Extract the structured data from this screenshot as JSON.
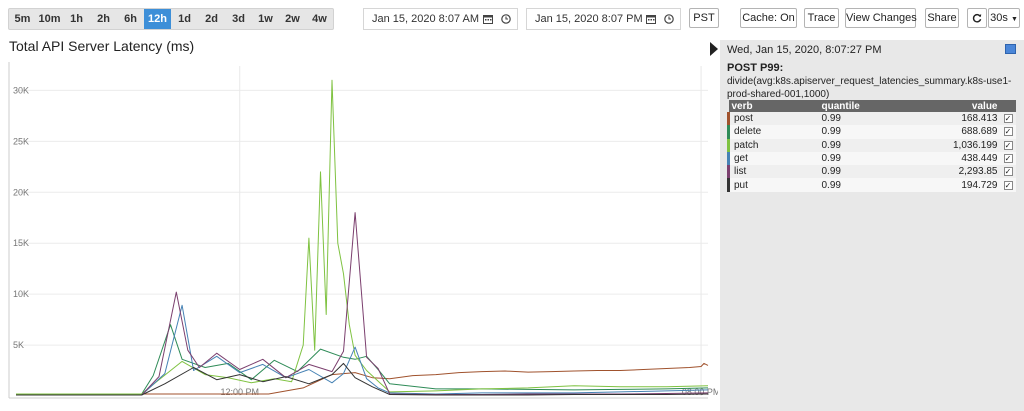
{
  "toolbar": {
    "ranges": [
      "5m",
      "10m",
      "1h",
      "2h",
      "6h",
      "12h",
      "1d",
      "2d",
      "3d",
      "1w",
      "2w",
      "4w"
    ],
    "active_range": "12h",
    "start_date": "Jan 15, 2020 8:07 AM",
    "end_date": "Jan 15, 2020 8:07 PM",
    "timezone": "PST",
    "cache_label": "Cache: On",
    "trace_label": "Trace",
    "view_changes_label": "View Changes",
    "share_label": "Share",
    "refresh_interval": "30s"
  },
  "chart": {
    "title": "Total API Server Latency (ms)"
  },
  "chart_data": {
    "type": "line",
    "title": "Total API Server Latency (ms)",
    "y_ticks": [
      "5K",
      "10K",
      "15K",
      "20K",
      "25K",
      "30K"
    ],
    "y_tick_values": [
      5000,
      10000,
      15000,
      20000,
      25000,
      30000
    ],
    "ylim": [
      0,
      32000
    ],
    "x_ticks": [
      "12:00 PM",
      "08:00 PM"
    ],
    "x_tick_values": [
      12,
      20
    ],
    "xlim": [
      8.12,
      20.12
    ],
    "series": [
      {
        "name": "post",
        "color": "#a0522d",
        "x": [
          8.12,
          12.5,
          13.1,
          13.6,
          14.0,
          14.3,
          14.6,
          15.0,
          15.4,
          15.8,
          16.2,
          16.6,
          17.0,
          17.4,
          17.8,
          18.2,
          18.6,
          19.0,
          19.4,
          19.8,
          20.0,
          20.05,
          20.12
        ],
        "y": [
          200,
          200,
          800,
          2100,
          2300,
          1800,
          1700,
          2000,
          2100,
          2300,
          2400,
          2450,
          2350,
          2400,
          2450,
          2500,
          2500,
          2600,
          2700,
          2800,
          2900,
          3200,
          3000
        ]
      },
      {
        "name": "delete",
        "color": "#2e8b57",
        "x": [
          8.12,
          10.3,
          10.5,
          10.8,
          11.0,
          11.4,
          11.8,
          12.2,
          12.6,
          13.0,
          13.4,
          13.8,
          14.0,
          14.2,
          14.4,
          14.6,
          15.4,
          16.2,
          17.0,
          17.8,
          18.6,
          19.4,
          20.12
        ],
        "y": [
          200,
          200,
          2000,
          7000,
          3600,
          2800,
          3200,
          1600,
          3500,
          2400,
          4600,
          3800,
          3600,
          3900,
          2600,
          1200,
          700,
          700,
          650,
          600,
          650,
          700,
          800
        ]
      },
      {
        "name": "patch",
        "color": "#7fc241",
        "x": [
          8.12,
          10.3,
          10.6,
          11.0,
          11.4,
          11.8,
          12.2,
          12.6,
          12.9,
          13.1,
          13.2,
          13.3,
          13.4,
          13.5,
          13.6,
          13.7,
          13.8,
          13.9,
          14.0,
          14.2,
          14.6,
          15.4,
          16.2,
          17.0,
          17.8,
          18.6,
          19.4,
          20.12
        ],
        "y": [
          200,
          200,
          1600,
          3400,
          2100,
          1800,
          1300,
          1700,
          1400,
          5000,
          15500,
          4500,
          22000,
          8000,
          31000,
          15000,
          12000,
          7000,
          4000,
          2500,
          400,
          500,
          700,
          800,
          1000,
          900,
          900,
          1000
        ]
      },
      {
        "name": "get",
        "color": "#4682b4",
        "x": [
          8.12,
          10.3,
          10.7,
          11.0,
          11.2,
          11.6,
          12.0,
          12.4,
          12.8,
          13.2,
          13.6,
          13.8,
          14.0,
          14.2,
          14.4,
          14.6,
          15.4,
          16.2,
          17.0,
          17.8,
          18.6,
          19.4,
          20.12
        ],
        "y": [
          100,
          100,
          2200,
          8900,
          2500,
          3900,
          2300,
          3100,
          1800,
          2600,
          1300,
          2200,
          4800,
          1700,
          800,
          300,
          200,
          300,
          300,
          300,
          400,
          500,
          600
        ]
      },
      {
        "name": "list",
        "color": "#7b3f6e",
        "x": [
          8.12,
          10.3,
          10.6,
          10.9,
          11.1,
          11.3,
          11.6,
          12.0,
          12.4,
          12.8,
          13.2,
          13.6,
          13.8,
          14.0,
          14.2,
          14.4,
          14.6,
          15.4,
          16.2,
          17.0,
          17.8,
          18.6,
          19.4,
          20.12
        ],
        "y": [
          100,
          100,
          1900,
          10200,
          4500,
          2800,
          4200,
          2600,
          3600,
          1800,
          3100,
          2400,
          4400,
          18000,
          3800,
          2700,
          200,
          150,
          150,
          200,
          200,
          200,
          250,
          300
        ]
      },
      {
        "name": "put",
        "color": "#333333",
        "x": [
          8.12,
          10.3,
          10.7,
          11.2,
          11.6,
          12.0,
          12.4,
          12.8,
          13.2,
          13.6,
          13.8,
          14.0,
          14.3,
          14.6,
          15.4,
          16.2,
          17.0,
          17.8,
          18.6,
          19.4,
          20.12
        ],
        "y": [
          100,
          100,
          1200,
          2800,
          1600,
          2100,
          1400,
          1900,
          1200,
          2100,
          3200,
          1800,
          900,
          150,
          100,
          100,
          100,
          150,
          150,
          150,
          200
        ]
      }
    ]
  },
  "legend": {
    "timestamp": "Wed, Jan 15, 2020, 8:07:27 PM",
    "heading": "POST P99:",
    "expression": "divide(avg:k8s.apiserver_request_latencies_summary.k8s-use1-prod-shared-001,1000)",
    "columns": [
      "verb",
      "quantile",
      "value"
    ],
    "rows": [
      {
        "verb": "post",
        "quantile": "0.99",
        "value": "168.413",
        "color": "#a0522d",
        "checked": true
      },
      {
        "verb": "delete",
        "quantile": "0.99",
        "value": "688.689",
        "color": "#2e8b57",
        "checked": true
      },
      {
        "verb": "patch",
        "quantile": "0.99",
        "value": "1,036.199",
        "color": "#7fc241",
        "checked": true
      },
      {
        "verb": "get",
        "quantile": "0.99",
        "value": "438.449",
        "color": "#4682b4",
        "checked": true
      },
      {
        "verb": "list",
        "quantile": "0.99",
        "value": "2,293.85",
        "color": "#7b3f6e",
        "checked": true
      },
      {
        "verb": "put",
        "quantile": "0.99",
        "value": "194.729",
        "color": "#333333",
        "checked": true
      }
    ]
  }
}
